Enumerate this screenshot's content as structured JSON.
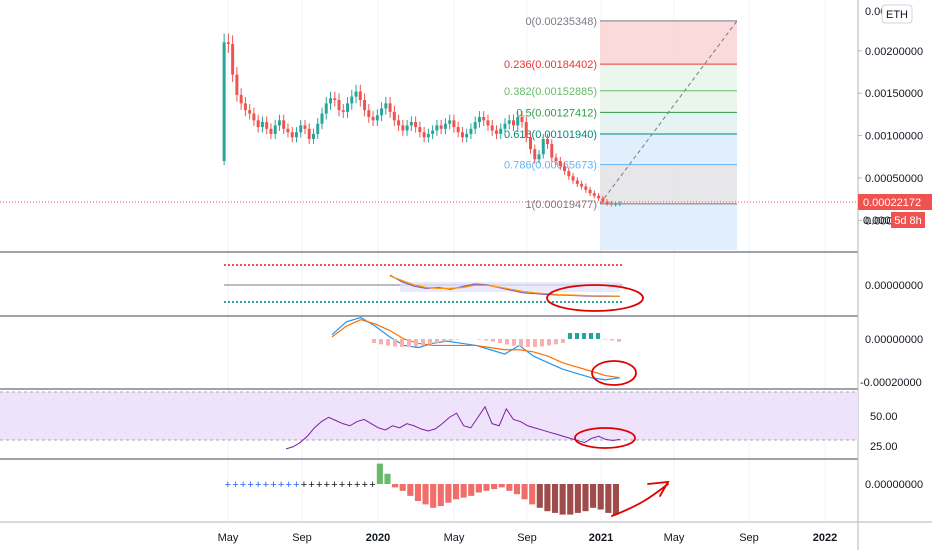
{
  "ticker": "ETH",
  "price_label": "0.00022172",
  "countdown_label": "5d 8h",
  "price_label_partial": "0.000",
  "colors": {
    "up": "#26a69a",
    "down": "#ef5350",
    "price_line": "#ef5350",
    "annotation": "#e00000"
  },
  "time_axis": [
    "May",
    "Sep",
    "2020",
    "May",
    "Sep",
    "2021",
    "May",
    "Sep",
    "2022"
  ],
  "chart_data": [
    {
      "type": "candlestick",
      "price_ticks": [
        "0.00200000",
        "0.00150000",
        "0.00100000",
        "0.00050000",
        "0.00000000"
      ],
      "top_tick_partial": "0.00",
      "price_range": [
        -0.00035,
        0.0026
      ],
      "series_close": [
        0.0021,
        0.00208,
        0.00172,
        0.00148,
        0.00138,
        0.0013,
        0.00126,
        0.00118,
        0.0011,
        0.00116,
        0.00108,
        0.00102,
        0.00112,
        0.00118,
        0.00108,
        0.00104,
        0.00098,
        0.00104,
        0.00112,
        0.00108,
        0.00096,
        0.00102,
        0.00114,
        0.00126,
        0.00138,
        0.00144,
        0.00142,
        0.0013,
        0.00128,
        0.00138,
        0.00146,
        0.00152,
        0.00142,
        0.0013,
        0.00122,
        0.00118,
        0.00124,
        0.00132,
        0.00138,
        0.00128,
        0.00118,
        0.00112,
        0.00106,
        0.00112,
        0.00116,
        0.0011,
        0.00104,
        0.00098,
        0.00102,
        0.00106,
        0.00112,
        0.00108,
        0.00114,
        0.00118,
        0.0011,
        0.00104,
        0.00098,
        0.00102,
        0.00108,
        0.00116,
        0.00122,
        0.00118,
        0.00112,
        0.00106,
        0.00102,
        0.00108,
        0.00114,
        0.00118,
        0.00112,
        0.00122,
        0.00116,
        0.00098,
        0.00084,
        0.00072,
        0.00078,
        0.00096,
        0.0009,
        0.00074,
        0.0007,
        0.00064,
        0.00058,
        0.00052,
        0.00047,
        0.00043,
        0.0004,
        0.00036,
        0.00032,
        0.00029,
        0.00026,
        0.00022,
        0.0002,
        0.00019,
        0.000195,
        0.0002
      ],
      "fibonacci": {
        "levels": [
          {
            "label": "0(0.00235348)",
            "value": 0.00235348,
            "color": "#787b86",
            "fill": "#f9d4d3"
          },
          {
            "label": "0.236(0.00184402)",
            "value": 0.00184402,
            "color": "#e53935",
            "fill": "#e8f5e9"
          },
          {
            "label": "0.382(0.00152885)",
            "value": 0.00152885,
            "color": "#66bb6a",
            "fill": "#e6f4e6"
          },
          {
            "label": "0.5(0.00127412)",
            "value": 0.00127412,
            "color": "#2e9d48",
            "fill": "#e0f2f1"
          },
          {
            "label": "0.618(0.00101940)",
            "value": 0.0010194,
            "color": "#00897b",
            "fill": "#dcecfb"
          },
          {
            "label": "0.786(0.00065673)",
            "value": 0.00065673,
            "color": "#64b5f6",
            "fill": "#e3e3e6"
          },
          {
            "label": "1(0.00019477)",
            "value": 0.00019477,
            "color": "#787b86",
            "fill": "#dcebfb"
          }
        ]
      }
    },
    {
      "type": "line",
      "panel": "stochastic",
      "series": [
        {
          "values": [
            70,
            55,
            45,
            40,
            42,
            38,
            44,
            50,
            48,
            42,
            36,
            30,
            28,
            26,
            25,
            24,
            23,
            22,
            22,
            22
          ]
        },
        {
          "values": [
            68,
            58,
            48,
            42,
            40,
            40,
            42,
            47,
            47,
            43,
            38,
            33,
            30,
            28,
            26,
            25,
            24,
            23,
            23,
            22
          ]
        }
      ]
    },
    {
      "type": "line",
      "panel": "macd",
      "tick": "0.00000000",
      "tick_low": "-0.00020000",
      "series": [
        {
          "values": [
            2e-05,
            8e-05,
            0.0001,
            6e-05,
            1e-05,
            -3e-05,
            -4e-05,
            -2e-05,
            -1e-05,
            -2e-05,
            -3e-05,
            -5e-05,
            -7e-05,
            -3e-05,
            -8e-05,
            -0.00011,
            -0.00014,
            -0.00016,
            -0.00018,
            -0.00019,
            -0.00018
          ]
        },
        {
          "values": [
            1e-05,
            6e-05,
            9e-05,
            7e-05,
            4e-05,
            0.0,
            -2e-05,
            -3e-05,
            -3e-05,
            -3e-05,
            -3e-05,
            -4e-05,
            -5e-05,
            -5e-05,
            -6e-05,
            -8e-05,
            -0.00011,
            -0.00013,
            -0.00015,
            -0.00017,
            -0.00018
          ]
        }
      ]
    },
    {
      "type": "line",
      "panel": "rsi",
      "ticks": [
        "50.00",
        "25.00"
      ],
      "values": [
        18,
        20,
        24,
        30,
        38,
        44,
        48,
        45,
        42,
        40,
        44,
        46,
        42,
        38,
        36,
        40,
        38,
        42,
        40,
        37,
        35,
        37,
        42,
        48,
        52,
        40,
        38,
        48,
        58,
        42,
        40,
        56,
        46,
        44,
        40,
        38,
        36,
        34,
        32,
        30,
        28,
        26,
        24,
        28,
        30,
        27,
        26,
        27
      ]
    },
    {
      "type": "bar",
      "panel": "momentum",
      "tick": "0.00000000",
      "values": [
        0,
        0,
        0,
        0,
        0,
        0,
        0,
        0,
        0,
        0,
        0,
        0,
        0,
        0,
        0,
        0,
        0,
        0,
        0,
        0,
        0.6,
        0.3,
        -0.1,
        -0.2,
        -0.35,
        -0.5,
        -0.6,
        -0.7,
        -0.65,
        -0.55,
        -0.45,
        -0.4,
        -0.35,
        -0.25,
        -0.2,
        -0.15,
        -0.1,
        -0.2,
        -0.3,
        -0.45,
        -0.6,
        -0.7,
        -0.8,
        -0.85,
        -0.9,
        -0.9,
        -0.85,
        -0.8,
        -0.7,
        -0.75,
        -0.85,
        -0.9
      ]
    }
  ]
}
